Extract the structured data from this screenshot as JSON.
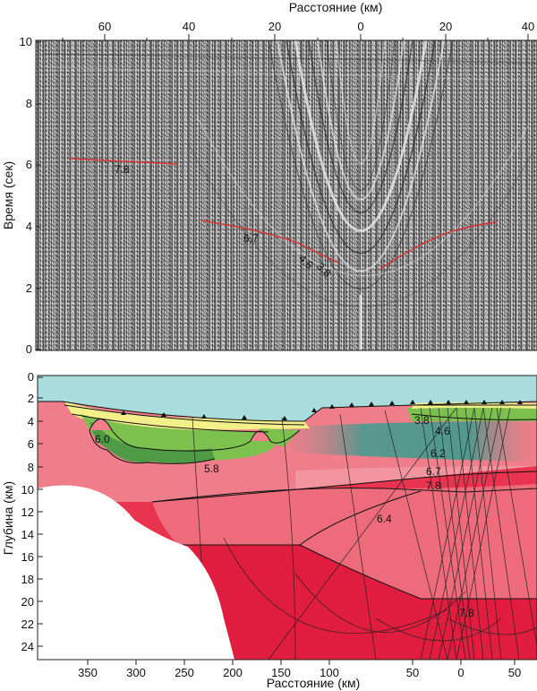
{
  "colors": {
    "water": "#a9dcdc",
    "crust_pink": "#f07d8a",
    "crust_light": "#f3a0a8",
    "crust_red": "#e8344f",
    "mantle_red": "#e01c3f",
    "sed_yellow": "#f3f08a",
    "sed_green": "#7cc04e",
    "sed_darkgreen": "#4f9a45",
    "teal": "#3e9c8e",
    "pick_red": "#d8322f",
    "seismic_bg": "#9a9a9a"
  },
  "top_panel": {
    "x_title": "Расстояние (км)",
    "y_title": "Время (сек)",
    "x_ticks": [
      {
        "label": "60"
      },
      {
        "label": "40"
      },
      {
        "label": "20"
      },
      {
        "label": "0"
      },
      {
        "label": "20"
      },
      {
        "label": "40"
      }
    ],
    "y_ticks": [
      {
        "label": "10"
      },
      {
        "label": "8"
      },
      {
        "label": "6"
      },
      {
        "label": "4"
      },
      {
        "label": "2"
      },
      {
        "label": "0"
      }
    ],
    "velocity_labels": [
      "7.8",
      "6.7",
      "4.6",
      "3.8"
    ]
  },
  "bottom_panel": {
    "x_title": "Расстояние (км)",
    "y_title": "Глубина (км)",
    "x_ticks": [
      {
        "label": "350"
      },
      {
        "label": "300"
      },
      {
        "label": "250"
      },
      {
        "label": "200"
      },
      {
        "label": "150"
      },
      {
        "label": "100"
      },
      {
        "label": "50"
      },
      {
        "label": "0"
      },
      {
        "label": "50"
      }
    ],
    "y_ticks": [
      {
        "label": "0"
      },
      {
        "label": "2"
      },
      {
        "label": "4"
      },
      {
        "label": "6"
      },
      {
        "label": "8"
      },
      {
        "label": "10"
      },
      {
        "label": "12"
      },
      {
        "label": "14"
      },
      {
        "label": "16"
      },
      {
        "label": "18"
      },
      {
        "label": "20"
      },
      {
        "label": "22"
      },
      {
        "label": "24"
      }
    ],
    "velocity_labels": [
      "6.0",
      "5.8",
      "3.8",
      "4.6",
      "6.2",
      "6.7",
      "7.8",
      "6.4",
      "7.8"
    ]
  }
}
